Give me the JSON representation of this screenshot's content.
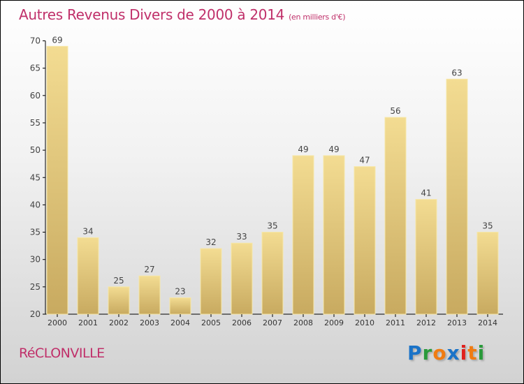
{
  "chart_data": {
    "type": "bar",
    "title": "Autres Revenus Divers de 2000 à 2014",
    "subtitle": "(en milliers d'€)",
    "categories": [
      "2000",
      "2001",
      "2002",
      "2003",
      "2004",
      "2005",
      "2006",
      "2007",
      "2008",
      "2009",
      "2010",
      "2011",
      "2012",
      "2013",
      "2014"
    ],
    "values": [
      69,
      34,
      25,
      27,
      23,
      32,
      33,
      35,
      49,
      49,
      47,
      56,
      41,
      63,
      35
    ],
    "ylim": [
      20,
      70
    ],
    "yticks": [
      20,
      25,
      30,
      35,
      40,
      45,
      50,
      55,
      60,
      65,
      70
    ],
    "xlabel": "",
    "ylabel": "",
    "grid": false,
    "bar_color": "#e8cf88"
  },
  "footer": {
    "town": "RéCLONVILLE",
    "logo": [
      "P",
      "r",
      "o",
      "x",
      "i",
      "t",
      "i"
    ],
    "logo_colors": [
      "#1a73c8",
      "#2a9a3a",
      "#f07c12",
      "#1a73c8",
      "#e0201c",
      "#f07c12",
      "#2a9a3a"
    ]
  }
}
